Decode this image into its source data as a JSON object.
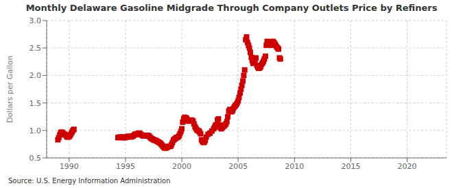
{
  "chart_data": {
    "type": "scatter",
    "title": "Monthly Delaware Gasoline Midgrade Through Company Outlets Price by Refiners",
    "ylabel": "Dollars per Gallon",
    "annotations": [
      "Source: U.S. Energy Information Administration"
    ],
    "xlim": [
      1988.0,
      2023.5
    ],
    "ylim": [
      0.5,
      3.0
    ],
    "xticks": [
      1990,
      1995,
      2000,
      2005,
      2010,
      2015,
      2020
    ],
    "yticks": [
      0.5,
      {
        "value": 1.0,
        "label": "1.0"
      },
      1.5,
      {
        "value": 2.0,
        "label": "2.0"
      },
      2.5,
      {
        "value": 3.0,
        "label": "3.0"
      }
    ],
    "color": "#cc0000",
    "marker": "square",
    "grid": true,
    "x": [
      1989.0,
      1989.08,
      1989.17,
      1989.25,
      1989.33,
      1989.42,
      1989.5,
      1989.58,
      1989.67,
      1989.75,
      1989.83,
      1989.92,
      1990.0,
      1990.08,
      1990.17,
      1990.25,
      1990.33,
      1990.42,
      1994.33,
      1994.42,
      1994.5,
      1994.58,
      1994.67,
      1994.75,
      1994.83,
      1994.92,
      1995.0,
      1995.08,
      1995.17,
      1995.25,
      1995.33,
      1995.42,
      1995.5,
      1995.58,
      1995.67,
      1995.75,
      1995.83,
      1995.92,
      1996.0,
      1996.08,
      1996.17,
      1996.25,
      1996.33,
      1996.42,
      1996.5,
      1996.58,
      1996.67,
      1996.75,
      1996.83,
      1996.92,
      1997.0,
      1997.08,
      1997.17,
      1997.25,
      1997.33,
      1997.42,
      1997.5,
      1997.58,
      1997.67,
      1997.75,
      1997.83,
      1997.92,
      1998.0,
      1998.08,
      1998.17,
      1998.25,
      1998.33,
      1998.42,
      1998.5,
      1998.58,
      1998.67,
      1998.75,
      1998.83,
      1998.92,
      1999.0,
      1999.08,
      1999.17,
      1999.25,
      1999.33,
      1999.42,
      1999.5,
      1999.58,
      1999.67,
      1999.75,
      1999.83,
      1999.92,
      2000.0,
      2000.08,
      2000.17,
      2000.25,
      2000.33,
      2000.42,
      2000.5,
      2000.58,
      2000.67,
      2000.75,
      2000.83,
      2000.92,
      2001.0,
      2001.08,
      2001.17,
      2001.25,
      2001.33,
      2001.42,
      2001.5,
      2001.58,
      2001.67,
      2001.75,
      2001.83,
      2001.92,
      2002.0,
      2002.08,
      2002.17,
      2002.33,
      2002.5,
      2002.67,
      2002.83,
      2002.92,
      2003.0,
      2003.17,
      2003.25,
      2003.33,
      2003.42,
      2003.5,
      2003.58,
      2003.67,
      2003.75,
      2003.83,
      2003.92,
      2004.0,
      2004.08,
      2004.17,
      2004.25,
      2004.33,
      2004.42,
      2004.5,
      2004.58,
      2004.67,
      2004.75,
      2004.83,
      2004.92,
      2005.0,
      2005.08,
      2005.17,
      2005.25,
      2005.33,
      2005.42,
      2005.5,
      2005.58,
      2005.67,
      2005.75,
      2005.83,
      2005.92,
      2006.0,
      2006.08,
      2006.17,
      2006.25,
      2006.33,
      2006.42,
      2006.5,
      2006.58,
      2006.67,
      2006.75,
      2006.83,
      2006.92,
      2007.0,
      2007.08,
      2007.17,
      2007.25,
      2007.33,
      2007.42,
      2007.5,
      2007.58,
      2007.67,
      2007.75,
      2007.83,
      2007.92,
      2008.0,
      2008.08,
      2008.17,
      2008.25,
      2008.33,
      2008.42,
      2008.5,
      2008.58,
      2008.67,
      2008.75
    ],
    "values": [
      0.83,
      0.87,
      0.92,
      0.96,
      0.97,
      0.96,
      0.94,
      0.93,
      0.92,
      0.9,
      0.88,
      0.88,
      0.89,
      0.91,
      0.94,
      0.97,
      1.0,
      1.02,
      0.87,
      0.87,
      0.88,
      0.88,
      0.88,
      0.87,
      0.87,
      0.87,
      0.87,
      0.88,
      0.89,
      0.89,
      0.89,
      0.89,
      0.88,
      0.89,
      0.9,
      0.91,
      0.93,
      0.93,
      0.93,
      0.94,
      0.95,
      0.95,
      0.93,
      0.92,
      0.91,
      0.9,
      0.9,
      0.9,
      0.91,
      0.91,
      0.91,
      0.9,
      0.88,
      0.86,
      0.85,
      0.84,
      0.83,
      0.82,
      0.82,
      0.81,
      0.8,
      0.79,
      0.78,
      0.77,
      0.75,
      0.73,
      0.71,
      0.69,
      0.68,
      0.68,
      0.69,
      0.7,
      0.71,
      0.71,
      0.71,
      0.74,
      0.78,
      0.82,
      0.84,
      0.85,
      0.87,
      0.87,
      0.88,
      0.9,
      0.94,
      0.98,
      1.03,
      1.15,
      1.21,
      1.24,
      1.23,
      1.22,
      1.19,
      1.17,
      1.17,
      1.18,
      1.19,
      1.18,
      1.17,
      1.12,
      1.07,
      1.04,
      1.01,
      1.0,
      0.99,
      0.97,
      0.94,
      0.83,
      0.8,
      0.78,
      0.79,
      0.82,
      0.88,
      0.93,
      0.95,
      0.99,
      1.03,
      1.06,
      1.1,
      1.19,
      1.21,
      1.1,
      1.05,
      1.03,
      1.05,
      1.07,
      1.08,
      1.1,
      1.12,
      1.16,
      1.25,
      1.35,
      1.38,
      1.36,
      1.34,
      1.36,
      1.4,
      1.43,
      1.45,
      1.47,
      1.5,
      1.54,
      1.6,
      1.68,
      1.75,
      1.82,
      1.9,
      2.0,
      2.1,
      2.65,
      2.7,
      2.6,
      2.55,
      2.5,
      2.42,
      2.33,
      2.27,
      2.22,
      2.24,
      2.28,
      2.32,
      2.18,
      2.15,
      2.13,
      2.14,
      2.16,
      2.2,
      2.23,
      2.26,
      2.3,
      2.35,
      2.55,
      2.62,
      2.6,
      2.58,
      2.56,
      2.55,
      2.58,
      2.62,
      2.6,
      2.58,
      2.55,
      2.52,
      2.5,
      2.48,
      2.32,
      2.3
    ]
  }
}
